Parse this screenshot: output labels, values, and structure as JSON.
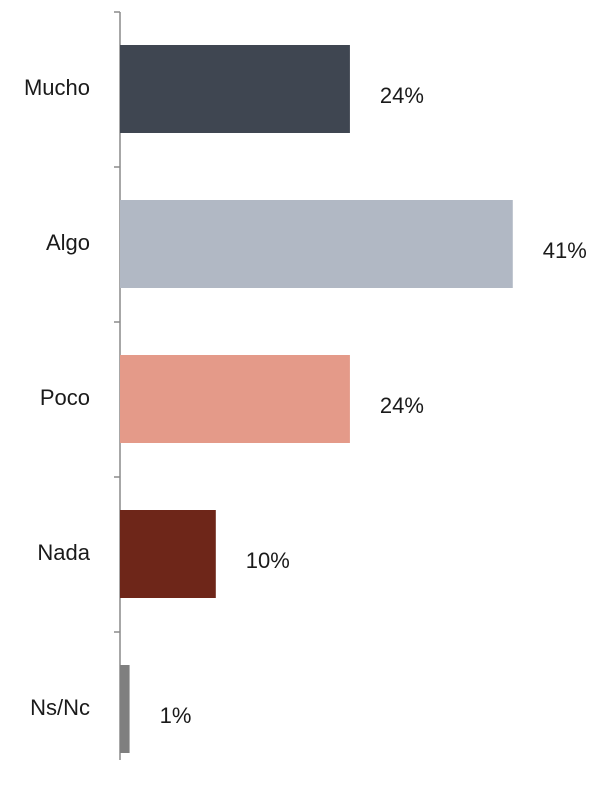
{
  "chart_data": {
    "type": "barh",
    "categories": [
      "Mucho",
      "Algo",
      "Poco",
      "Nada",
      "Ns/Nc"
    ],
    "values": [
      24,
      41,
      24,
      10,
      1
    ],
    "value_labels": [
      "24%",
      "41%",
      "24%",
      "10%",
      "1%"
    ],
    "colors": [
      "#3f4651",
      "#b1b8c4",
      "#e49a89",
      "#6e2619",
      "#7f7f7f"
    ]
  }
}
